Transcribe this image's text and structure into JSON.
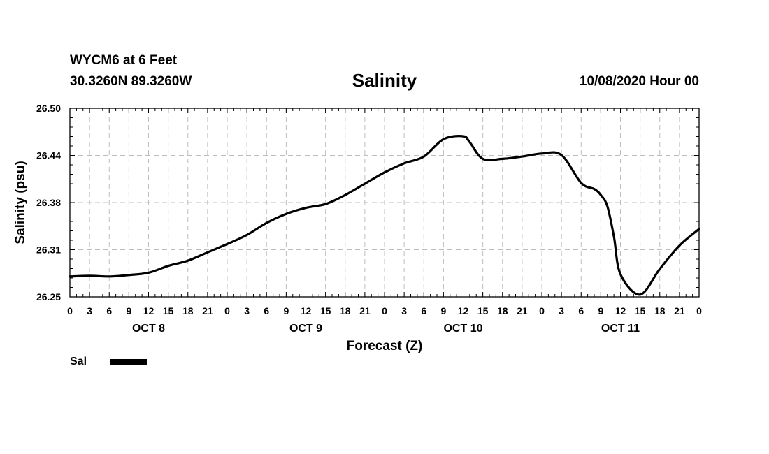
{
  "header": {
    "station": "WYCM6 at 6 Feet",
    "coords": "30.3260N 89.3260W",
    "title": "Salinity",
    "timestamp": "10/08/2020 Hour 00"
  },
  "chart_data": {
    "type": "line",
    "title": "Salinity",
    "xlabel": "Forecast (Z)",
    "ylabel": "Salinity (psu)",
    "xlim": [
      0,
      96
    ],
    "ylim": [
      26.25,
      26.5
    ],
    "yticks": [
      "26.25",
      "26.31",
      "26.38",
      "26.44",
      "26.50"
    ],
    "ytick_values": [
      26.25,
      26.3125,
      26.375,
      26.4375,
      26.5
    ],
    "xtick_hours": [
      0,
      3,
      6,
      9,
      12,
      15,
      18,
      21,
      24,
      27,
      30,
      33,
      36,
      39,
      42,
      45,
      48,
      51,
      54,
      57,
      60,
      63,
      66,
      69,
      72,
      75,
      78,
      81,
      84,
      87,
      90,
      93,
      96
    ],
    "xtick_labels": [
      "0",
      "3",
      "6",
      "9",
      "12",
      "15",
      "18",
      "21",
      "0",
      "3",
      "6",
      "9",
      "12",
      "15",
      "18",
      "21",
      "0",
      "3",
      "6",
      "9",
      "12",
      "15",
      "18",
      "21",
      "0",
      "3",
      "6",
      "9",
      "12",
      "15",
      "18",
      "21",
      "0"
    ],
    "day_labels": [
      {
        "hour": 12,
        "label": "OCT 8"
      },
      {
        "hour": 36,
        "label": "OCT 9"
      },
      {
        "hour": 60,
        "label": "OCT 10"
      },
      {
        "hour": 84,
        "label": "OCT 11"
      }
    ],
    "grid": true,
    "legend": "bottom-left",
    "series": [
      {
        "name": "Sal",
        "color": "#000000",
        "x": [
          0,
          3,
          6,
          9,
          12,
          15,
          18,
          21,
          24,
          27,
          30,
          33,
          36,
          39,
          42,
          45,
          48,
          51,
          54,
          57,
          60,
          61,
          63,
          66,
          69,
          72,
          75,
          78,
          80,
          81,
          82,
          83,
          84,
          87,
          90,
          93,
          96
        ],
        "y": [
          26.277,
          26.278,
          26.277,
          26.279,
          26.282,
          26.291,
          26.298,
          26.309,
          26.32,
          26.332,
          26.348,
          26.36,
          26.368,
          26.373,
          26.385,
          26.4,
          26.415,
          26.427,
          26.436,
          26.459,
          26.463,
          26.455,
          26.433,
          26.433,
          26.436,
          26.44,
          26.438,
          26.401,
          26.393,
          26.385,
          26.37,
          26.33,
          26.28,
          26.253,
          26.287,
          26.318,
          26.34
        ]
      }
    ]
  }
}
